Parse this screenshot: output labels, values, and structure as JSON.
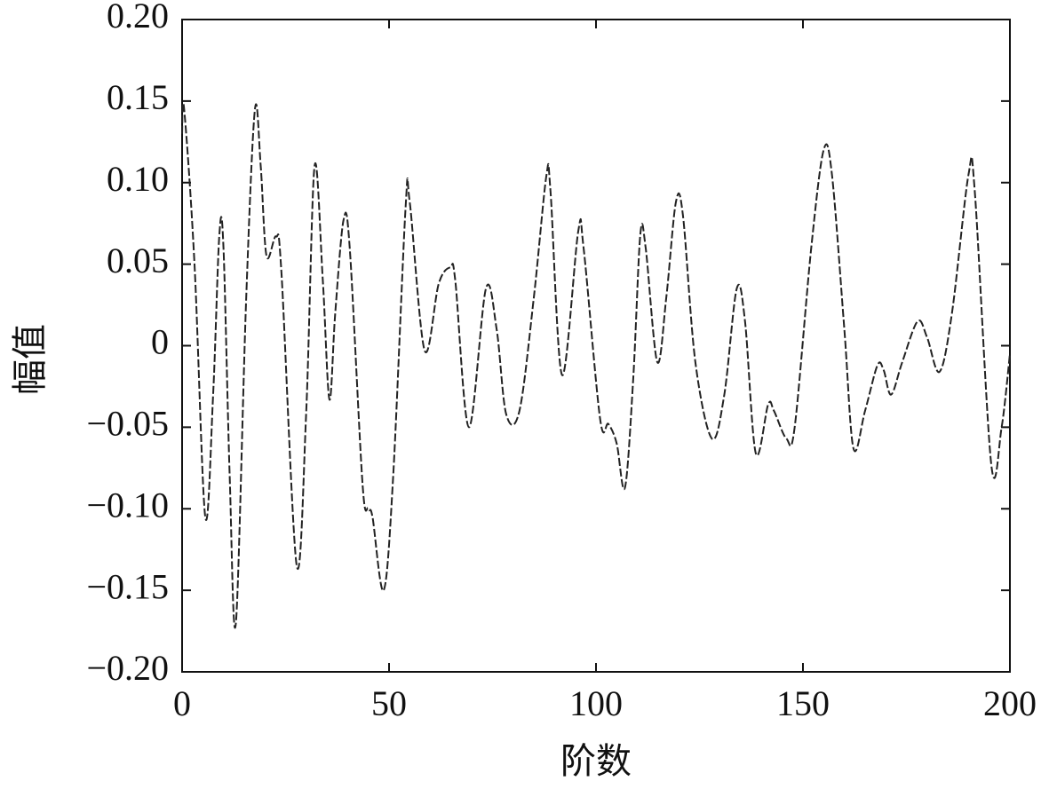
{
  "chart_data": {
    "type": "line",
    "x_label": "阶数",
    "y_label": "幅值",
    "xlim": [
      0,
      200
    ],
    "ylim": [
      -0.2,
      0.2
    ],
    "xticks": [
      0,
      50,
      100,
      150,
      200
    ],
    "yticks": [
      {
        "value": 0.2,
        "label": "0.20"
      },
      0.15,
      {
        "value": 0.1,
        "label": "0.10"
      },
      0.05,
      0,
      {
        "value": -0.05,
        "label": "−0.05"
      },
      {
        "value": -0.1,
        "label": "−0.10"
      },
      {
        "value": -0.15,
        "label": "−0.15"
      },
      {
        "value": -0.2,
        "label": "−0.20"
      }
    ],
    "series": [
      {
        "color": "#222222",
        "x": [
          0,
          0.5,
          3,
          5.6,
          7.5,
          9,
          10,
          11.5,
          13,
          15.5,
          17.6,
          19,
          20.4,
          22.7,
          24,
          27.7,
          30,
          32,
          34,
          35.6,
          37,
          39,
          40.5,
          43.6,
          45,
          46,
          48.7,
          51,
          54,
          55,
          58.6,
          62,
          64.8,
          66,
          69.3,
          73.4,
          76,
          78.3,
          81.5,
          85,
          88,
          89,
          91.8,
          95.7,
          97,
          101,
          103,
          105,
          107,
          109,
          110.7,
          112,
          114.8,
          117,
          119.3,
          121,
          124,
          128,
          131,
          134,
          136,
          138.6,
          141.6,
          143,
          146,
          148,
          152,
          155,
          157,
          160,
          162.2,
          165,
          168,
          169.5,
          171.3,
          174,
          177.7,
          180,
          183,
          186,
          190,
          191.5,
          195.5,
          198,
          200
        ],
        "values": [
          0.13,
          0.145,
          0.05,
          -0.105,
          -0.03,
          0.068,
          0.06,
          -0.08,
          -0.17,
          0.03,
          0.145,
          0.11,
          0.055,
          0.067,
          0.045,
          -0.135,
          -0.04,
          0.11,
          0.04,
          -0.033,
          0.02,
          0.077,
          0.06,
          -0.085,
          -0.1,
          -0.105,
          -0.15,
          -0.08,
          0.085,
          0.088,
          -0.003,
          0.038,
          0.048,
          0.04,
          -0.05,
          0.035,
          0.01,
          -0.042,
          -0.04,
          0.03,
          0.104,
          0.095,
          -0.018,
          0.07,
          0.06,
          -0.045,
          -0.048,
          -0.06,
          -0.087,
          -0.02,
          0.068,
          0.06,
          -0.01,
          0.03,
          0.088,
          0.08,
          -0.01,
          -0.057,
          -0.03,
          0.035,
          0.015,
          -0.066,
          -0.036,
          -0.04,
          -0.057,
          -0.05,
          0.06,
          0.12,
          0.105,
          0.01,
          -0.063,
          -0.04,
          -0.012,
          -0.015,
          -0.03,
          -0.01,
          0.015,
          0.005,
          -0.016,
          0.02,
          0.105,
          0.095,
          -0.073,
          -0.05,
          -0.005
        ]
      }
    ]
  }
}
